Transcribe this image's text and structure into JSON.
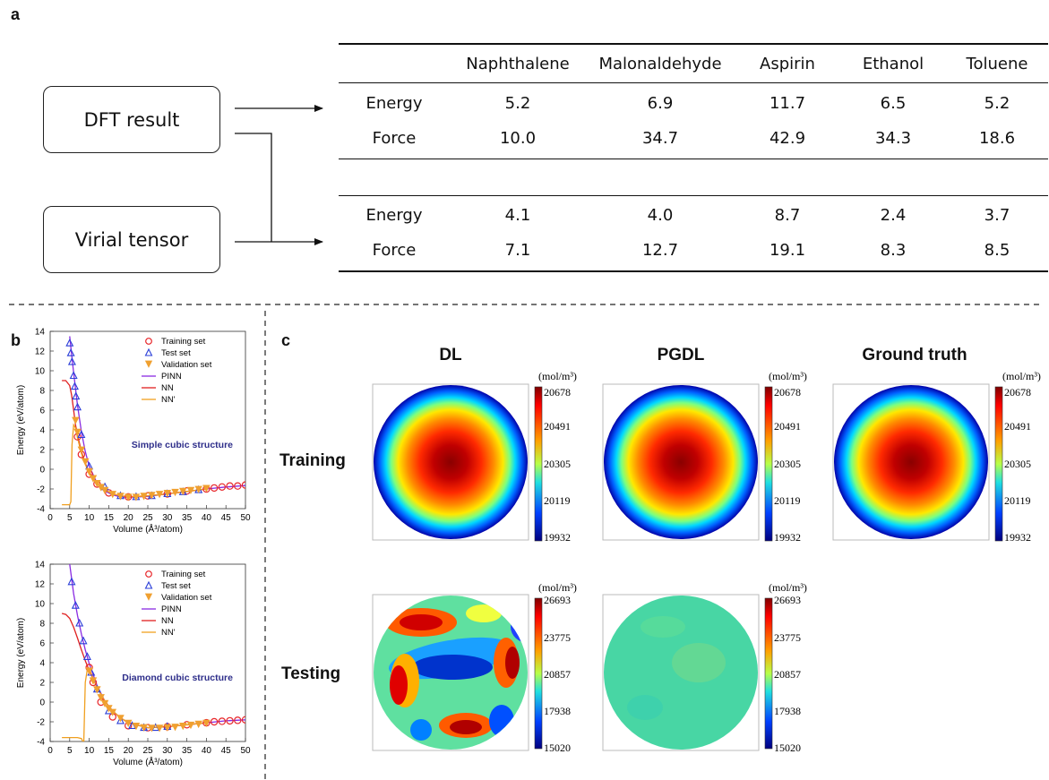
{
  "panels": {
    "a": "a",
    "b": "b",
    "c": "c"
  },
  "boxes": {
    "dft": "DFT result",
    "virial": "Virial tensor"
  },
  "table": {
    "columns": [
      "",
      "Naphthalene",
      "Malonaldehyde",
      "Aspirin",
      "Ethanol",
      "Toluene"
    ],
    "group1": [
      {
        "label": "Energy",
        "values": [
          "5.2",
          "6.9",
          "11.7",
          "6.5",
          "5.2"
        ]
      },
      {
        "label": "Force",
        "values": [
          "10.0",
          "34.7",
          "42.9",
          "34.3",
          "18.6"
        ]
      }
    ],
    "group2": [
      {
        "label": "Energy",
        "values": [
          "4.1",
          "4.0",
          "8.7",
          "2.4",
          "3.7"
        ]
      },
      {
        "label": "Force",
        "values": [
          "7.1",
          "12.7",
          "19.1",
          "8.3",
          "8.5"
        ]
      }
    ]
  },
  "chart_data": [
    {
      "type": "line",
      "title": "Simple cubic structure",
      "xlabel": "Volume (Å³/atom)",
      "ylabel": "Energy (eV/atom)",
      "xlim": [
        0,
        50
      ],
      "ylim": [
        -4,
        14
      ],
      "xticks": [
        0,
        5,
        10,
        15,
        20,
        25,
        30,
        35,
        40,
        45,
        50
      ],
      "yticks": [
        -4,
        -2,
        0,
        2,
        4,
        6,
        8,
        10,
        12,
        14
      ],
      "legend": [
        "Training set",
        "Test set",
        "Validation set",
        "PINN",
        "NN",
        "NN'"
      ],
      "legend_position": "top-right",
      "series": [
        {
          "name": "Training set",
          "marker": "circle",
          "color": "#e8262a",
          "x": [
            7,
            8,
            10,
            12,
            15,
            20,
            25,
            30,
            35,
            40,
            42,
            44,
            46,
            48,
            50
          ],
          "y": [
            3.3,
            1.5,
            -0.5,
            -1.5,
            -2.4,
            -2.8,
            -2.7,
            -2.5,
            -2.2,
            -2.0,
            -1.9,
            -1.8,
            -1.7,
            -1.7,
            -1.6
          ]
        },
        {
          "name": "Test set",
          "marker": "triangle-up",
          "color": "#2b3fd8",
          "x": [
            5,
            5.3,
            5.6,
            6,
            6.3,
            6.6,
            7,
            8,
            10,
            14,
            18,
            22,
            26,
            30,
            34,
            38
          ],
          "y": [
            12.8,
            11.8,
            10.9,
            9.5,
            8.4,
            7.4,
            6.3,
            3.5,
            0.3,
            -1.8,
            -2.7,
            -2.8,
            -2.7,
            -2.5,
            -2.3,
            -2.1
          ]
        },
        {
          "name": "Validation set",
          "marker": "triangle-down",
          "color": "#f0a030",
          "x": [
            6.5,
            7,
            8,
            9,
            10,
            11,
            12,
            13,
            14,
            16,
            18,
            20,
            22,
            24,
            26,
            28,
            30,
            32,
            34,
            36,
            38,
            40
          ],
          "y": [
            5.0,
            3.8,
            2.0,
            0.8,
            -0.2,
            -0.9,
            -1.4,
            -1.8,
            -2.1,
            -2.5,
            -2.7,
            -2.8,
            -2.8,
            -2.7,
            -2.6,
            -2.5,
            -2.4,
            -2.3,
            -2.2,
            -2.1,
            -2.0,
            -1.9
          ]
        },
        {
          "name": "PINN",
          "color": "#8a2be2",
          "x": [
            5,
            5.5,
            6,
            7,
            8,
            9,
            10,
            12,
            14,
            16,
            18,
            20,
            25,
            30,
            35,
            40,
            45,
            50
          ],
          "y": [
            13.5,
            11.6,
            9.8,
            6.5,
            3.8,
            1.8,
            0.3,
            -1.4,
            -2.2,
            -2.6,
            -2.8,
            -2.85,
            -2.75,
            -2.5,
            -2.25,
            -2.0,
            -1.8,
            -1.65
          ]
        },
        {
          "name": "NN",
          "color": "#e02020",
          "x": [
            3,
            4,
            5,
            5.5,
            6,
            6.5,
            7,
            8,
            9,
            10,
            12,
            14,
            16,
            18,
            20,
            25,
            30,
            35,
            40
          ],
          "y": [
            9.0,
            9.0,
            8.5,
            7.5,
            6.0,
            4.5,
            3.5,
            1.8,
            0.6,
            -0.3,
            -1.4,
            -2.1,
            -2.5,
            -2.7,
            -2.8,
            -2.7,
            -2.5,
            -2.25,
            -2.0
          ]
        },
        {
          "name": "NN'",
          "color": "#f0a020",
          "x": [
            3,
            4,
            5,
            5.3,
            5.6,
            6,
            6.5,
            7,
            8,
            9,
            10,
            12,
            14,
            16,
            18,
            20,
            25,
            30,
            35,
            40
          ],
          "y": [
            -3.6,
            -3.6,
            -3.6,
            -3.3,
            2.5,
            4.5,
            4.2,
            3.2,
            1.6,
            0.5,
            -0.4,
            -1.4,
            -2.1,
            -2.5,
            -2.7,
            -2.8,
            -2.7,
            -2.5,
            -2.25,
            -2.0
          ]
        }
      ]
    },
    {
      "type": "line",
      "title": "Diamond cubic structure",
      "xlabel": "Volume (Å³/atom)",
      "ylabel": "Energy (eV/atom)",
      "xlim": [
        0,
        50
      ],
      "ylim": [
        -4,
        14
      ],
      "xticks": [
        0,
        5,
        10,
        15,
        20,
        25,
        30,
        35,
        40,
        45,
        50
      ],
      "yticks": [
        -4,
        -2,
        0,
        2,
        4,
        6,
        8,
        10,
        12,
        14
      ],
      "legend": [
        "Training set",
        "Test set",
        "Validation set",
        "PINN",
        "NN",
        "NN'"
      ],
      "legend_position": "top-right",
      "series": [
        {
          "name": "Training set",
          "marker": "circle",
          "color": "#e8262a",
          "x": [
            10,
            11,
            13,
            16,
            20,
            25,
            30,
            35,
            40,
            42,
            44,
            46,
            48,
            50
          ],
          "y": [
            3.5,
            2.0,
            0.0,
            -1.5,
            -2.4,
            -2.6,
            -2.5,
            -2.3,
            -2.1,
            -2.0,
            -1.95,
            -1.9,
            -1.85,
            -1.8
          ]
        },
        {
          "name": "Test set",
          "marker": "triangle-up",
          "color": "#2b3fd8",
          "x": [
            5.5,
            6.5,
            7.5,
            8.5,
            9.5,
            10.5,
            12,
            15,
            18,
            21,
            24,
            27,
            30
          ],
          "y": [
            12.2,
            9.8,
            8.0,
            6.2,
            4.6,
            3.0,
            1.3,
            -0.9,
            -1.9,
            -2.4,
            -2.6,
            -2.6,
            -2.5
          ]
        },
        {
          "name": "Validation set",
          "marker": "triangle-down",
          "color": "#f0a030",
          "x": [
            10,
            11,
            12,
            13,
            14,
            15,
            16,
            18,
            20,
            22,
            24,
            26,
            28,
            30,
            32,
            34,
            36,
            38,
            40
          ],
          "y": [
            3.2,
            2.2,
            1.3,
            0.5,
            -0.1,
            -0.6,
            -1.0,
            -1.6,
            -2.1,
            -2.4,
            -2.55,
            -2.6,
            -2.6,
            -2.55,
            -2.5,
            -2.4,
            -2.3,
            -2.2,
            -2.1
          ]
        },
        {
          "name": "PINN",
          "color": "#8a2be2",
          "x": [
            5,
            6,
            7,
            8,
            9,
            10,
            12,
            14,
            16,
            18,
            20,
            25,
            30,
            35,
            40,
            45,
            50
          ],
          "y": [
            14.0,
            11.0,
            8.8,
            6.9,
            5.3,
            3.9,
            1.7,
            0.1,
            -0.9,
            -1.6,
            -2.1,
            -2.6,
            -2.5,
            -2.3,
            -2.1,
            -1.9,
            -1.8
          ]
        },
        {
          "name": "NN",
          "color": "#e02020",
          "x": [
            3,
            4,
            5,
            6,
            7,
            8,
            9,
            10,
            12,
            14,
            16,
            18,
            20,
            25,
            30,
            35,
            40
          ],
          "y": [
            9.0,
            8.9,
            8.5,
            7.6,
            6.5,
            5.3,
            4.2,
            3.2,
            1.5,
            0.1,
            -0.9,
            -1.6,
            -2.1,
            -2.6,
            -2.5,
            -2.3,
            -2.1
          ]
        },
        {
          "name": "NN'",
          "color": "#f0a020",
          "x": [
            3,
            5,
            7,
            8,
            8.6,
            9.0,
            9.5,
            10,
            11,
            12,
            14,
            16,
            18,
            20,
            25,
            30,
            35,
            40
          ],
          "y": [
            -3.6,
            -3.6,
            -3.6,
            -3.7,
            -4.2,
            2.0,
            3.3,
            3.4,
            2.4,
            1.5,
            0.1,
            -0.9,
            -1.6,
            -2.1,
            -2.6,
            -2.5,
            -2.3,
            -2.1
          ]
        }
      ]
    },
    {
      "type": "heatmap",
      "columns": [
        "DL",
        "PGDL",
        "Ground truth"
      ],
      "rows": [
        "Training",
        "Testing"
      ],
      "unit": "(mol/m³)",
      "training_colorbar_ticks": [
        "20678",
        "20491",
        "20305",
        "20119",
        "19932"
      ],
      "testing_colorbar_ticks": [
        "26693",
        "23775",
        "20857",
        "17938",
        "15020"
      ]
    }
  ]
}
